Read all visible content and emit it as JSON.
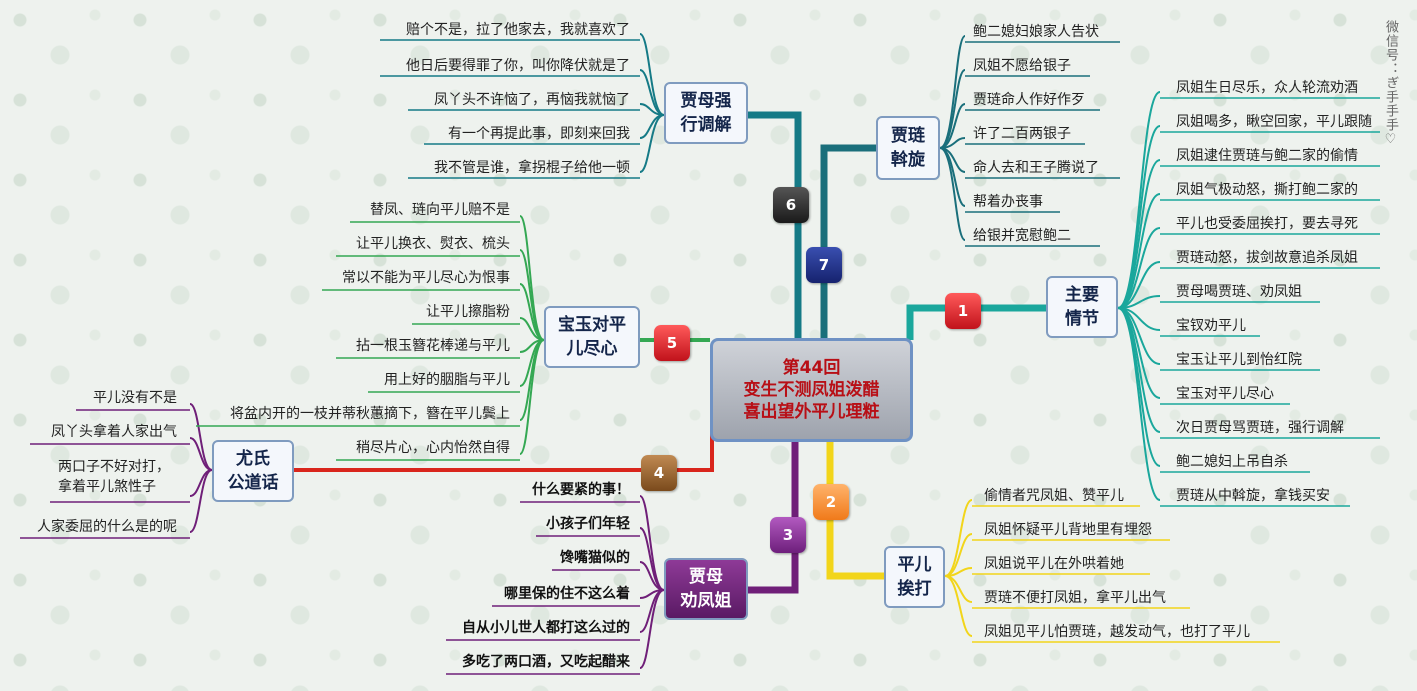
{
  "title": {
    "line1": "第44回",
    "line2": "变生不测凤姐泼醋",
    "line3": "喜出望外平儿理粧"
  },
  "watermark": "微信号：ぎ手手手♡",
  "branches": {
    "b1": {
      "number": "1",
      "label": [
        "主要",
        "情节"
      ],
      "items": [
        "凤姐生日尽乐，众人轮流劝酒",
        "凤姐喝多，瞅空回家，平儿跟随",
        "凤姐逮住贾琏与鲍二家的偷情",
        "凤姐气极动怒，撕打鲍二家的",
        "平儿也受委屈挨打，要去寻死",
        "贾琏动怒，拔剑故意追杀凤姐",
        "贾母喝贾琏、劝凤姐",
        "宝钗劝平儿",
        "宝玉让平儿到怡红院",
        "宝玉对平儿尽心",
        "次日贾母骂贾琏，强行调解",
        "鲍二媳妇上吊自杀",
        "贾琏从中斡旋，拿钱买安"
      ]
    },
    "b2": {
      "number": "2",
      "label": [
        "平儿",
        "挨打"
      ],
      "items": [
        "偷情者咒凤姐、赞平儿",
        "凤姐怀疑平儿背地里有埋怨",
        "凤姐说平儿在外哄着她",
        "贾琏不便打凤姐，拿平儿出气",
        "凤姐见平儿怕贾琏，越发动气，也打了平儿"
      ]
    },
    "b3": {
      "number": "3",
      "label": [
        "贾母",
        "劝凤姐"
      ],
      "items": [
        "什么要紧的事！",
        "小孩子们年轻",
        "馋嘴猫似的",
        "哪里保的住不这么着",
        "自从小儿世人都打这么过的",
        "多吃了两口酒，又吃起醋来"
      ]
    },
    "b4": {
      "number": "4",
      "label": [
        "尤氏",
        "公道话"
      ],
      "items": [
        "平儿没有不是",
        "凤丫头拿着人家出气",
        "两口子不好对打，",
        "拿着平儿煞性子",
        "人家委屈的什么是的呢"
      ]
    },
    "b5": {
      "number": "5",
      "label": [
        "宝玉对平",
        "儿尽心"
      ],
      "items": [
        "替凤、琏向平儿赔不是",
        "让平儿换衣、熨衣、梳头",
        "常以不能为平儿尽心为恨事",
        "让平儿擦脂粉",
        "拈一根玉簪花棒递与平儿",
        "用上好的胭脂与平儿",
        "将盆内开的一枝并蒂秋蕙摘下，簪在平儿鬓上",
        "稍尽片心，心内怡然自得"
      ]
    },
    "b6": {
      "number": "6",
      "label": [
        "贾母强",
        "行调解"
      ],
      "items": [
        "赔个不是，拉了他家去，我就喜欢了",
        "他日后要得罪了你，叫你降伏就是了",
        "凤丫头不许恼了，再恼我就恼了",
        "有一个再提此事，即刻来回我",
        "我不管是谁，拿拐棍子给他一顿"
      ]
    },
    "b7": {
      "number": "7",
      "label": [
        "贾琏",
        "斡旋"
      ],
      "items": [
        "鲍二媳妇娘家人告状",
        "凤姐不愿给银子",
        "贾琏命人作好作歹",
        "许了二百两银子",
        "命人去和王子腾说了",
        "帮着办丧事",
        "给银并宽慰鲍二"
      ]
    }
  },
  "colors": {
    "b1": "#1aa79c",
    "b2": "#f2d51a",
    "b3": "#6f1f78",
    "b4": "#d9261c",
    "b5": "#34a853",
    "b6": "#157a86",
    "b7": "#1a6f7b"
  }
}
